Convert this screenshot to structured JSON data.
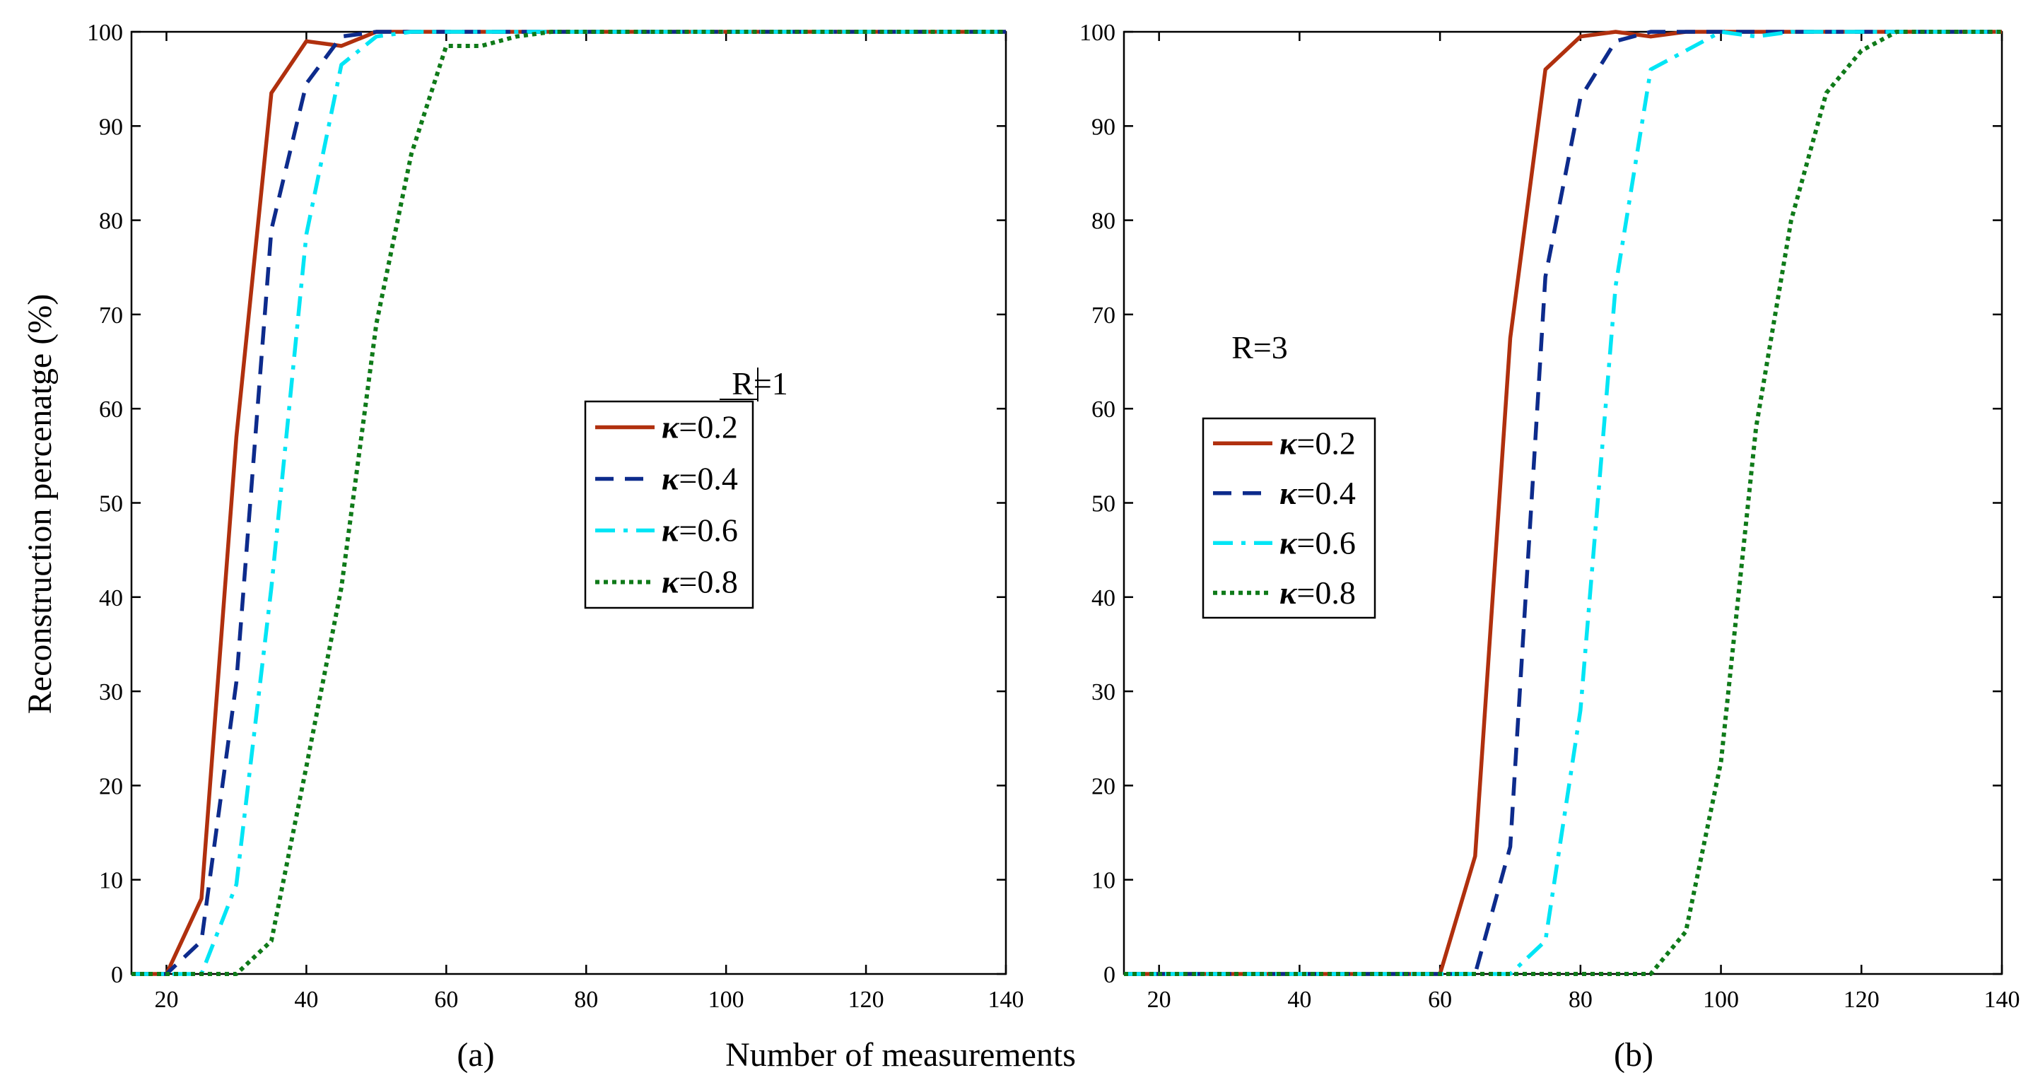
{
  "chart_data": [
    {
      "type": "line",
      "panel": "(a)",
      "annotation": "R=1",
      "ylabel": "Reconstruction percenatge  (%)",
      "xlim": [
        15,
        140
      ],
      "ylim": [
        0,
        100
      ],
      "xticks": [
        20,
        40,
        60,
        80,
        100,
        120,
        140
      ],
      "yticks": [
        0,
        10,
        20,
        30,
        40,
        50,
        60,
        70,
        80,
        90,
        100
      ],
      "legend": "center-right",
      "x": [
        15,
        20,
        25,
        30,
        35,
        40,
        45,
        50,
        55,
        60,
        65,
        70,
        75,
        80,
        85,
        90,
        95,
        100,
        105,
        110,
        115,
        120,
        125,
        130,
        135,
        140
      ],
      "series": [
        {
          "name": "=0.2",
          "symbol": "κ",
          "color": "#b0300e",
          "dash": "solid",
          "values": [
            0,
            0,
            8,
            57,
            93.5,
            99,
            98.5,
            100,
            100,
            100,
            100,
            100,
            100,
            100,
            100,
            100,
            100,
            100,
            100,
            100,
            100,
            100,
            100,
            100,
            100,
            100
          ]
        },
        {
          "name": "=0.4",
          "symbol": "κ",
          "color": "#0d2b8c",
          "dash": "dashed",
          "values": [
            0,
            0,
            3.5,
            31,
            79,
            94.5,
            99.5,
            100,
            100,
            100,
            100,
            100,
            100,
            100,
            100,
            100,
            100,
            100,
            100,
            100,
            100,
            100,
            100,
            100,
            100,
            100
          ]
        },
        {
          "name": "=0.6",
          "symbol": "κ",
          "color": "#00e5f5",
          "dash": "dashdot",
          "values": [
            0,
            0,
            0,
            9.5,
            41,
            78.5,
            96.5,
            99.5,
            100,
            100,
            100,
            100,
            100,
            100,
            100,
            100,
            100,
            100,
            100,
            100,
            100,
            100,
            100,
            100,
            100,
            100
          ]
        },
        {
          "name": "=0.8",
          "symbol": "κ",
          "color": "#0f7a19",
          "dash": "dotted",
          "values": [
            0,
            0,
            0,
            0,
            3.5,
            22,
            41,
            69,
            87,
            98.5,
            98.5,
            99.5,
            100,
            100,
            100,
            100,
            100,
            100,
            100,
            100,
            100,
            100,
            100,
            100,
            100,
            100
          ]
        }
      ]
    },
    {
      "type": "line",
      "panel": "(b)",
      "annotation": "R=3",
      "xlim": [
        15,
        140
      ],
      "ylim": [
        0,
        100
      ],
      "xticks": [
        20,
        40,
        60,
        80,
        100,
        120,
        140
      ],
      "yticks": [
        0,
        10,
        20,
        30,
        40,
        50,
        60,
        70,
        80,
        90,
        100
      ],
      "legend": "center-left",
      "x": [
        15,
        20,
        25,
        30,
        35,
        40,
        45,
        50,
        55,
        60,
        65,
        70,
        75,
        80,
        85,
        90,
        95,
        100,
        105,
        110,
        115,
        120,
        125,
        130,
        135,
        140
      ],
      "series": [
        {
          "name": "=0.2",
          "symbol": "κ",
          "color": "#b0300e",
          "dash": "solid",
          "values": [
            0,
            0,
            0,
            0,
            0,
            0,
            0,
            0,
            0,
            0,
            12.5,
            67.5,
            96,
            99.5,
            100,
            99.5,
            100,
            100,
            100,
            100,
            100,
            100,
            100,
            100,
            100,
            100
          ]
        },
        {
          "name": "=0.4",
          "symbol": "κ",
          "color": "#0d2b8c",
          "dash": "dashed",
          "values": [
            0,
            0,
            0,
            0,
            0,
            0,
            0,
            0,
            0,
            0,
            0,
            13.5,
            74,
            93,
            99,
            100,
            100,
            100,
            100,
            100,
            100,
            100,
            100,
            100,
            100,
            100
          ]
        },
        {
          "name": "=0.6",
          "symbol": "κ",
          "color": "#00e5f5",
          "dash": "dashdot",
          "values": [
            0,
            0,
            0,
            0,
            0,
            0,
            0,
            0,
            0,
            0,
            0,
            0,
            3.5,
            28,
            73,
            96,
            98,
            100,
            99.5,
            100,
            100,
            100,
            100,
            100,
            100,
            100
          ]
        },
        {
          "name": "=0.8",
          "symbol": "κ",
          "color": "#0f7a19",
          "dash": "dotted",
          "values": [
            0,
            0,
            0,
            0,
            0,
            0,
            0,
            0,
            0,
            0,
            0,
            0,
            0,
            0,
            0,
            0,
            4.5,
            22.5,
            58,
            80,
            93.5,
            98,
            100,
            100,
            100,
            100
          ]
        }
      ]
    }
  ],
  "figure": {
    "xlabel": "Number of measurements"
  }
}
